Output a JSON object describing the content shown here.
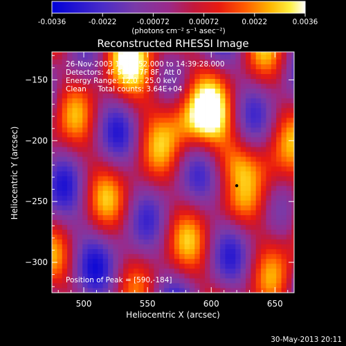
{
  "colorbar": {
    "ticks": [
      "-0.0036",
      "-0.0022",
      "-0.00072",
      "0.00072",
      "0.0022",
      "0.0036"
    ],
    "unit_label": "(photons cm⁻² s⁻¹ asec⁻²)",
    "range": [
      -0.0036,
      0.0036
    ]
  },
  "footer": {
    "date_stamp": "30-May-2013 20:11"
  },
  "chart_data": {
    "type": "heatmap",
    "title": "Reconstructed RHESSI Image",
    "xlabel": "Heliocentric X (arcsec)",
    "ylabel": "Heliocentric Y (arcsec)",
    "xlim": [
      475,
      665
    ],
    "ylim": [
      -325,
      -127
    ],
    "x_ticks": [
      500,
      550,
      600,
      650
    ],
    "y_ticks": [
      -150,
      -200,
      -250,
      -300
    ],
    "x_tick_labels": [
      "500",
      "550",
      "600",
      "650"
    ],
    "y_tick_labels": [
      "−150",
      "−200",
      "−250",
      "−300"
    ],
    "annotations": [
      "26-Nov-2003 14:37:52.000 to 14:39:28.000",
      "Detectors: 4F 5F 6F 7F 8F, Att 0",
      "Energy Range: 12.0 - 25.0 keV",
      "Clean     Total counts: 3.64E+04"
    ],
    "peak_label": "Position of Peak = [590,-184]",
    "peak": [
      590,
      -184
    ],
    "min_marker": [
      620,
      -237
    ],
    "pixel_size_arcsec": 4,
    "colormap": "rhessi-blue-purple-red-yellow-white"
  }
}
